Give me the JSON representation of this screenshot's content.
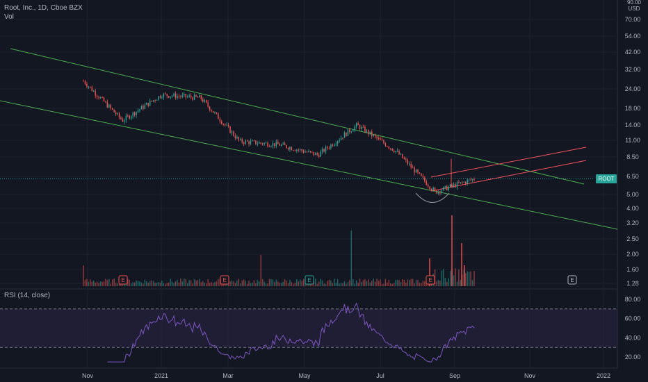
{
  "header": {
    "symbol_line": "Root, Inc., 1D, Cboe BZX",
    "volume_label": "Vol",
    "price_axis_top": "90.00",
    "currency": "USD"
  },
  "price_axis": {
    "ticks": [
      "70.00",
      "54.00",
      "42.00",
      "32.00",
      "24.00",
      "18.00",
      "14.00",
      "11.00",
      "8.50",
      "6.50",
      "5.00",
      "4.00",
      "3.20",
      "2.50",
      "2.00",
      "1.60",
      "1.28"
    ],
    "scale": "log"
  },
  "last_price_badge": {
    "label": "ROOT",
    "color": "#26a69a"
  },
  "time_axis": {
    "ticks": [
      "Nov",
      "2021",
      "Mar",
      "May",
      "Jul",
      "Sep",
      "Nov",
      "2022"
    ]
  },
  "earnings_markers": [
    {
      "label": "E",
      "color": "#ef5350"
    },
    {
      "label": "E",
      "color": "#ef5350"
    },
    {
      "label": "E",
      "color": "#26a69a"
    },
    {
      "label": "E",
      "color": "#ef5350"
    },
    {
      "label": "E",
      "color": "#b2b5be"
    }
  ],
  "rsi": {
    "label": "RSI (14, close)",
    "ticks": [
      "80.00",
      "60.00",
      "40.00",
      "20.00"
    ],
    "levels": [
      70,
      30
    ]
  },
  "colors": {
    "background": "#131722",
    "up": "#26a69a",
    "down": "#ef5350",
    "channel": "#4caf50",
    "rising_channel": "#f7525f",
    "rsi_line": "#7e57c2",
    "rsi_band": "#2a2444"
  },
  "chart_data": {
    "type": "candlestick",
    "approx_close_path": [
      {
        "x": "Nov 2020",
        "y": 27
      },
      {
        "x": "Dec 2020",
        "y": 15
      },
      {
        "x": "Jan 2021",
        "y": 22
      },
      {
        "x": "Feb 2021",
        "y": 21
      },
      {
        "x": "Mar 2021",
        "y": 11
      },
      {
        "x": "Apr 2021",
        "y": 10.5
      },
      {
        "x": "May 2021",
        "y": 9
      },
      {
        "x": "Jun 2021",
        "y": 14
      },
      {
        "x": "Jul 2021",
        "y": 9.5
      },
      {
        "x": "Aug 2021",
        "y": 5.2
      },
      {
        "x": "Sep 2021",
        "y": 6.3
      }
    ],
    "ylim": [
      1.28,
      90
    ],
    "rsi_ylim": [
      10,
      90
    ]
  }
}
